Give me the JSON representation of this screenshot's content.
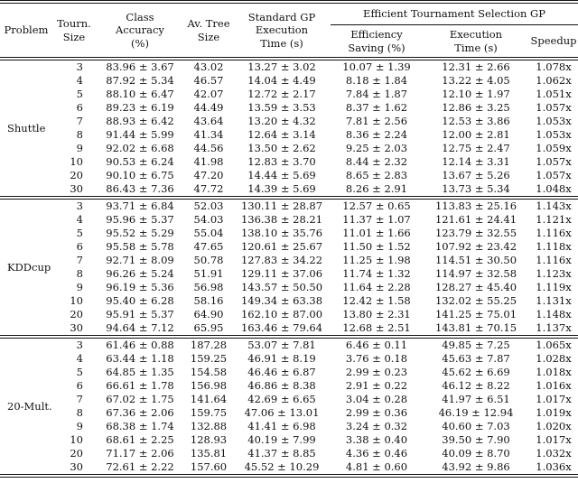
{
  "page": {
    "background_color": "#ffffff",
    "text_color": "#111111"
  },
  "table": {
    "group_header": "Efficient Tournament Selection GP",
    "headers": {
      "problem": "Problem",
      "tourn_size": "Tourn.\nSize",
      "class_accuracy": "Class\nAccuracy\n(%)",
      "av_tree_size": "Av. Tree\nSize",
      "standard_gp_time": "Standard GP\nExecution\nTime (s)",
      "efficiency_saving": "Efficiency\nSaving (%)",
      "execution_time": "Execution\nTime (s)",
      "speedup": "Speedup"
    },
    "column_keys": [
      "problem",
      "tourn_size",
      "class_accuracy",
      "av_tree_size",
      "standard_gp_time",
      "efficiency_saving",
      "execution_time",
      "speedup"
    ],
    "sections": [
      {
        "problem": "Shuttle",
        "rows": [
          [
            "3",
            "83.96 ± 3.67",
            "43.02",
            "13.27 ± 3.02",
            "10.07 ± 1.39",
            "12.31 ± 2.66",
            "1.078x"
          ],
          [
            "4",
            "87.92 ± 5.34",
            "46.57",
            "14.04 ± 4.49",
            "8.18 ± 1.84",
            "13.22 ± 4.05",
            "1.062x"
          ],
          [
            "5",
            "88.10 ± 6.47",
            "42.07",
            "12.72 ± 2.17",
            "7.84 ± 1.87",
            "12.10 ± 1.97",
            "1.051x"
          ],
          [
            "6",
            "89.23 ± 6.19",
            "44.49",
            "13.59 ± 3.53",
            "8.37 ± 1.62",
            "12.86 ± 3.25",
            "1.057x"
          ],
          [
            "7",
            "88.93 ± 6.42",
            "43.64",
            "13.20 ± 4.32",
            "7.81 ± 2.56",
            "12.53 ± 3.86",
            "1.053x"
          ],
          [
            "8",
            "91.44 ± 5.99",
            "41.34",
            "12.64 ± 3.14",
            "8.36 ± 2.24",
            "12.00 ± 2.81",
            "1.053x"
          ],
          [
            "9",
            "92.02 ± 6.68",
            "44.56",
            "13.50 ± 2.62",
            "9.25 ± 2.03",
            "12.75 ± 2.47",
            "1.059x"
          ],
          [
            "10",
            "90.53 ± 6.24",
            "41.98",
            "12.83 ± 3.70",
            "8.44 ± 2.32",
            "12.14 ± 3.31",
            "1.057x"
          ],
          [
            "20",
            "90.10 ± 6.75",
            "47.20",
            "14.44 ± 5.69",
            "8.65 ± 2.83",
            "13.67 ± 5.26",
            "1.057x"
          ],
          [
            "30",
            "86.43 ± 7.36",
            "47.72",
            "14.39 ± 5.69",
            "8.26 ± 2.91",
            "13.73 ± 5.34",
            "1.048x"
          ]
        ]
      },
      {
        "problem": "KDDcup",
        "rows": [
          [
            "3",
            "93.71 ± 6.84",
            "52.03",
            "130.11 ± 28.87",
            "12.57 ± 0.65",
            "113.83 ± 25.16",
            "1.143x"
          ],
          [
            "4",
            "95.96 ± 5.37",
            "54.03",
            "136.38 ± 28.21",
            "11.37 ± 1.07",
            "121.61 ± 24.41",
            "1.121x"
          ],
          [
            "5",
            "95.52 ± 5.29",
            "55.04",
            "138.10 ± 35.76",
            "11.01 ± 1.66",
            "123.79 ± 32.55",
            "1.116x"
          ],
          [
            "6",
            "95.58 ± 5.78",
            "47.65",
            "120.61 ± 25.67",
            "11.50 ± 1.52",
            "107.92 ± 23.42",
            "1.118x"
          ],
          [
            "7",
            "92.71 ± 8.09",
            "50.78",
            "127.83 ± 34.22",
            "11.25 ± 1.98",
            "114.51 ± 30.50",
            "1.116x"
          ],
          [
            "8",
            "96.26 ± 5.24",
            "51.91",
            "129.11 ± 37.06",
            "11.74 ± 1.32",
            "114.97 ± 32.58",
            "1.123x"
          ],
          [
            "9",
            "96.19 ± 5.36",
            "56.98",
            "143.57 ± 50.50",
            "11.64 ± 2.28",
            "128.27 ± 45.40",
            "1.119x"
          ],
          [
            "10",
            "95.40 ± 6.28",
            "58.16",
            "149.34 ± 63.38",
            "12.42 ± 1.58",
            "132.02 ± 55.25",
            "1.131x"
          ],
          [
            "20",
            "95.91 ± 5.37",
            "64.90",
            "162.10 ± 87.00",
            "13.80 ± 2.31",
            "141.25 ± 75.01",
            "1.148x"
          ],
          [
            "30",
            "94.64 ± 7.12",
            "65.95",
            "163.46 ± 79.64",
            "12.68 ± 2.51",
            "143.81 ± 70.15",
            "1.137x"
          ]
        ]
      },
      {
        "problem": "20-Mult.",
        "rows": [
          [
            "3",
            "61.46 ± 0.88",
            "187.28",
            "53.07 ± 7.81",
            "6.46 ± 0.11",
            "49.85 ± 7.25",
            "1.065x"
          ],
          [
            "4",
            "63.44 ± 1.18",
            "159.25",
            "46.91 ± 8.19",
            "3.76 ± 0.18",
            "45.63 ± 7.87",
            "1.028x"
          ],
          [
            "5",
            "64.85 ± 1.35",
            "154.58",
            "46.46 ± 6.87",
            "2.99 ± 0.23",
            "45.62 ± 6.69",
            "1.018x"
          ],
          [
            "6",
            "66.61 ± 1.78",
            "156.98",
            "46.86 ± 8.38",
            "2.91 ± 0.22",
            "46.12 ± 8.22",
            "1.016x"
          ],
          [
            "7",
            "67.02 ± 1.75",
            "141.64",
            "42.69 ± 6.65",
            "3.04 ± 0.28",
            "41.97 ± 6.51",
            "1.017x"
          ],
          [
            "8",
            "67.36 ± 2.06",
            "159.75",
            "47.06 ± 13.01",
            "2.99 ± 0.36",
            "46.19 ± 12.94",
            "1.019x"
          ],
          [
            "9",
            "68.38 ± 1.74",
            "132.88",
            "41.41 ± 6.98",
            "3.24 ± 0.32",
            "40.60 ± 7.03",
            "1.020x"
          ],
          [
            "10",
            "68.61 ± 2.25",
            "128.93",
            "40.19 ± 7.99",
            "3.38 ± 0.40",
            "39.50 ± 7.90",
            "1.017x"
          ],
          [
            "20",
            "71.17 ± 2.06",
            "135.81",
            "41.37 ± 8.85",
            "4.36 ± 0.46",
            "40.09 ± 8.70",
            "1.032x"
          ],
          [
            "30",
            "72.61 ± 2.22",
            "157.60",
            "45.52 ± 10.29",
            "4.81 ± 0.60",
            "43.92 ± 9.86",
            "1.036x"
          ]
        ]
      }
    ]
  }
}
